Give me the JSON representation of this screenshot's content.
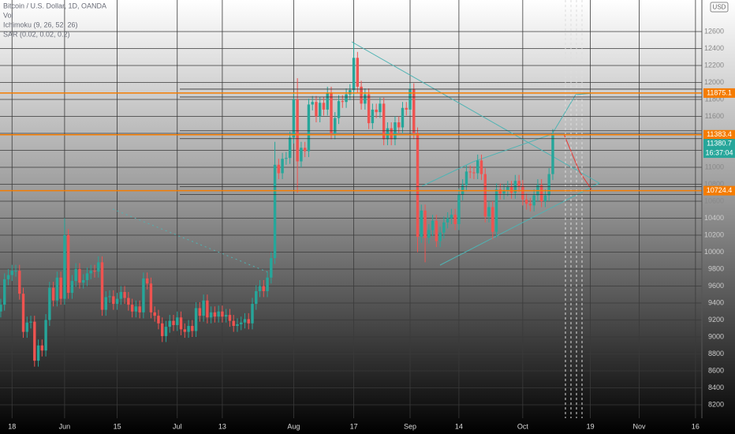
{
  "chart_data": {
    "type": "candlestick",
    "title": "Bitcoin / U.S. Dollar, 1D, OANDA",
    "indicators": [
      "Vol",
      "Ichimoku (9, 26, 52, 26)",
      "SAR (0.02, 0.02, 0.2)"
    ],
    "currency": "USD",
    "up_color": "#26a69a",
    "down_color": "#ef5350",
    "open": [
      9300,
      9380,
      9680,
      9730,
      9780,
      9780,
      9510,
      9060,
      9170,
      9180,
      8720,
      8900,
      8840,
      9200,
      9580,
      9430,
      9700,
      9450,
      10200,
      9520,
      9660,
      9800,
      9640,
      9670,
      9750,
      9780,
      9770,
      9880,
      9320,
      9470,
      9480,
      9390,
      9450,
      9530,
      9460,
      9380,
      9300,
      9360,
      9290,
      9690,
      9630,
      9290,
      9250,
      9160,
      9010,
      9120,
      9190,
      9140,
      9230,
      9090,
      9060,
      9130,
      9070,
      9340,
      9250,
      9430,
      9230,
      9290,
      9240,
      9300,
      9240,
      9260,
      9190,
      9130,
      9150,
      9170,
      9210,
      9160,
      9390,
      9540,
      9600,
      9540,
      9700,
      9930,
      11030,
      10930,
      11100,
      11110,
      11350,
      11800,
      11070,
      11230,
      11190,
      11740,
      11770,
      11600,
      11760,
      11680,
      11880,
      11400,
      11580,
      11780,
      11770,
      11860,
      11910,
      12290,
      11950,
      11750,
      11860,
      11520,
      11680,
      11650,
      11750,
      11330,
      11460,
      11330,
      11530,
      11470,
      11700,
      11680,
      11920,
      11400,
      10180,
      10490,
      10170,
      10260,
      10370,
      10130,
      10230,
      10350,
      10400,
      10440,
      10330,
      10680,
      10790,
      10950,
      10940,
      10930,
      11080,
      10920,
      10420,
      10530,
      10240,
      10740,
      10690,
      10730,
      10770,
      10700,
      10840,
      10780,
      10620,
      10570,
      10550,
      10670,
      10790,
      10600,
      10670,
      10920
    ],
    "high": [
      9450,
      9750,
      9800,
      9850,
      9850,
      9850,
      9580,
      9240,
      9250,
      9250,
      8970,
      8970,
      9270,
      9650,
      9650,
      9770,
      9770,
      10400,
      10270,
      9730,
      9870,
      9870,
      9740,
      9820,
      9850,
      9850,
      9950,
      9950,
      9540,
      9550,
      9550,
      9520,
      9600,
      9600,
      9530,
      9450,
      9430,
      9430,
      9760,
      9760,
      9700,
      9360,
      9320,
      9230,
      9190,
      9260,
      9260,
      9300,
      9300,
      9160,
      9200,
      9200,
      9410,
      9410,
      9500,
      9500,
      9360,
      9360,
      9370,
      9370,
      9330,
      9330,
      9260,
      9220,
      9240,
      9280,
      9280,
      9460,
      9610,
      9670,
      9670,
      9770,
      10000,
      11300,
      11100,
      11170,
      11180,
      11420,
      11870,
      12050,
      11300,
      11300,
      11810,
      11840,
      11840,
      11830,
      11830,
      11950,
      11950,
      11650,
      11850,
      11850,
      11930,
      11980,
      12470,
      12360,
      12020,
      11930,
      11930,
      11750,
      11750,
      11820,
      11820,
      11530,
      11530,
      11600,
      11600,
      11770,
      11770,
      11990,
      11990,
      11470,
      10560,
      10560,
      10330,
      10440,
      10440,
      10300,
      10420,
      10470,
      10510,
      10510,
      10750,
      10860,
      11020,
      11020,
      11010,
      11150,
      11150,
      10990,
      10600,
      10600,
      10810,
      10810,
      10800,
      10840,
      10840,
      10910,
      10910,
      10850,
      10690,
      10640,
      10740,
      10860,
      10860,
      10740,
      10990,
      11450
    ],
    "low": [
      9230,
      9310,
      9610,
      9660,
      9710,
      9440,
      8990,
      8990,
      9100,
      8650,
      8650,
      8770,
      8770,
      9130,
      9360,
      9360,
      9380,
      9380,
      9450,
      9450,
      9590,
      9570,
      9570,
      9600,
      9680,
      9700,
      9700,
      9250,
      9250,
      9400,
      9320,
      9320,
      9380,
      9390,
      9310,
      9230,
      9230,
      9220,
      9220,
      9560,
      9220,
      9180,
      9090,
      8940,
      8940,
      9050,
      9070,
      9070,
      9020,
      8990,
      8990,
      9000,
      9000,
      9180,
      9180,
      9160,
      9160,
      9170,
      9170,
      9170,
      9170,
      9120,
      9060,
      9060,
      9080,
      9100,
      9090,
      9090,
      9320,
      9470,
      9470,
      9470,
      9630,
      9860,
      10860,
      10860,
      11030,
      11040,
      11280,
      10700,
      11000,
      11120,
      11120,
      11670,
      11530,
      11530,
      11610,
      11610,
      11330,
      11330,
      11510,
      11700,
      11700,
      11790,
      11840,
      11880,
      11680,
      11680,
      11450,
      11450,
      11580,
      11580,
      11260,
      11260,
      11260,
      11260,
      11400,
      11400,
      11610,
      11610,
      11330,
      10000,
      10110,
      9880,
      10100,
      10190,
      10060,
      10060,
      10160,
      10280,
      10330,
      10260,
      10260,
      10610,
      10720,
      10870,
      10860,
      10860,
      10850,
      10350,
      10350,
      10150,
      10170,
      10620,
      10620,
      10660,
      10630,
      10630,
      10710,
      10550,
      10500,
      10480,
      10480,
      10600,
      10530,
      10530,
      10600,
      10850
    ],
    "close": [
      9380,
      9680,
      9730,
      9780,
      9780,
      9510,
      9060,
      9170,
      9180,
      8720,
      8900,
      8840,
      9200,
      9580,
      9430,
      9700,
      9450,
      10200,
      9520,
      9660,
      9800,
      9640,
      9670,
      9750,
      9780,
      9770,
      9880,
      9320,
      9470,
      9480,
      9390,
      9450,
      9530,
      9460,
      9380,
      9300,
      9360,
      9290,
      9690,
      9630,
      9290,
      9250,
      9160,
      9010,
      9120,
      9190,
      9140,
      9230,
      9090,
      9060,
      9130,
      9070,
      9340,
      9250,
      9430,
      9230,
      9290,
      9240,
      9300,
      9240,
      9260,
      9190,
      9130,
      9150,
      9170,
      9210,
      9160,
      9390,
      9540,
      9600,
      9540,
      9700,
      9930,
      11030,
      10930,
      11100,
      11110,
      11350,
      11800,
      11070,
      11230,
      11190,
      11740,
      11770,
      11600,
      11760,
      11680,
      11880,
      11400,
      11580,
      11780,
      11770,
      11860,
      11910,
      12290,
      11950,
      11750,
      11860,
      11520,
      11680,
      11650,
      11750,
      11330,
      11460,
      11330,
      11530,
      11470,
      11700,
      11680,
      11920,
      11400,
      10180,
      10490,
      10170,
      10260,
      10370,
      10130,
      10230,
      10350,
      10400,
      10440,
      10330,
      10680,
      10790,
      10950,
      10940,
      10930,
      11080,
      10920,
      10420,
      10530,
      10240,
      10740,
      10690,
      10730,
      10770,
      10700,
      10840,
      10780,
      10620,
      10570,
      10550,
      10670,
      10790,
      10600,
      10670,
      10920,
      11380
    ],
    "xlim": [
      -0.2,
      186.7
    ],
    "xticks": [
      {
        "value": 3,
        "label": "18"
      },
      {
        "value": 17,
        "label": "Jun"
      },
      {
        "value": 31,
        "label": "15"
      },
      {
        "value": 47,
        "label": "Jul"
      },
      {
        "value": 59,
        "label": "13"
      },
      {
        "value": 78,
        "label": "Aug"
      },
      {
        "value": 94,
        "label": "17"
      },
      {
        "value": 109,
        "label": "Sep"
      },
      {
        "value": 122,
        "label": "14"
      },
      {
        "value": 139,
        "label": "Oct"
      },
      {
        "value": 157,
        "label": "19"
      },
      {
        "value": 170,
        "label": "Nov"
      },
      {
        "value": 185,
        "label": "16"
      }
    ],
    "ylim": [
      8042,
      12972
    ],
    "yticks": [
      8200,
      8400,
      8600,
      8800,
      9000,
      9200,
      9400,
      9600,
      9800,
      10000,
      10200,
      10400,
      10600,
      10800,
      11000,
      11200,
      11400,
      11600,
      11800,
      12000,
      12200,
      12400,
      12600
    ],
    "grid": true,
    "price_lines": [
      11875.1,
      11383.4,
      10724.4
    ],
    "price_line_color": "#f57c00",
    "last_price": 11380.7,
    "countdown": "16:37:04"
  }
}
